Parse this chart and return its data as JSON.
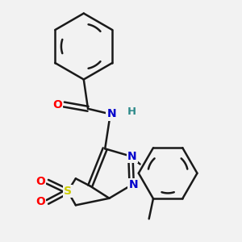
{
  "bg_color": "#f2f2f2",
  "bond_color": "#1a1a1a",
  "atom_colors": {
    "O": "#ff0000",
    "N": "#0000cc",
    "S": "#cccc00",
    "H": "#2e8b8b",
    "C": "#1a1a1a"
  },
  "figsize": [
    3.0,
    3.0
  ],
  "dpi": 100
}
